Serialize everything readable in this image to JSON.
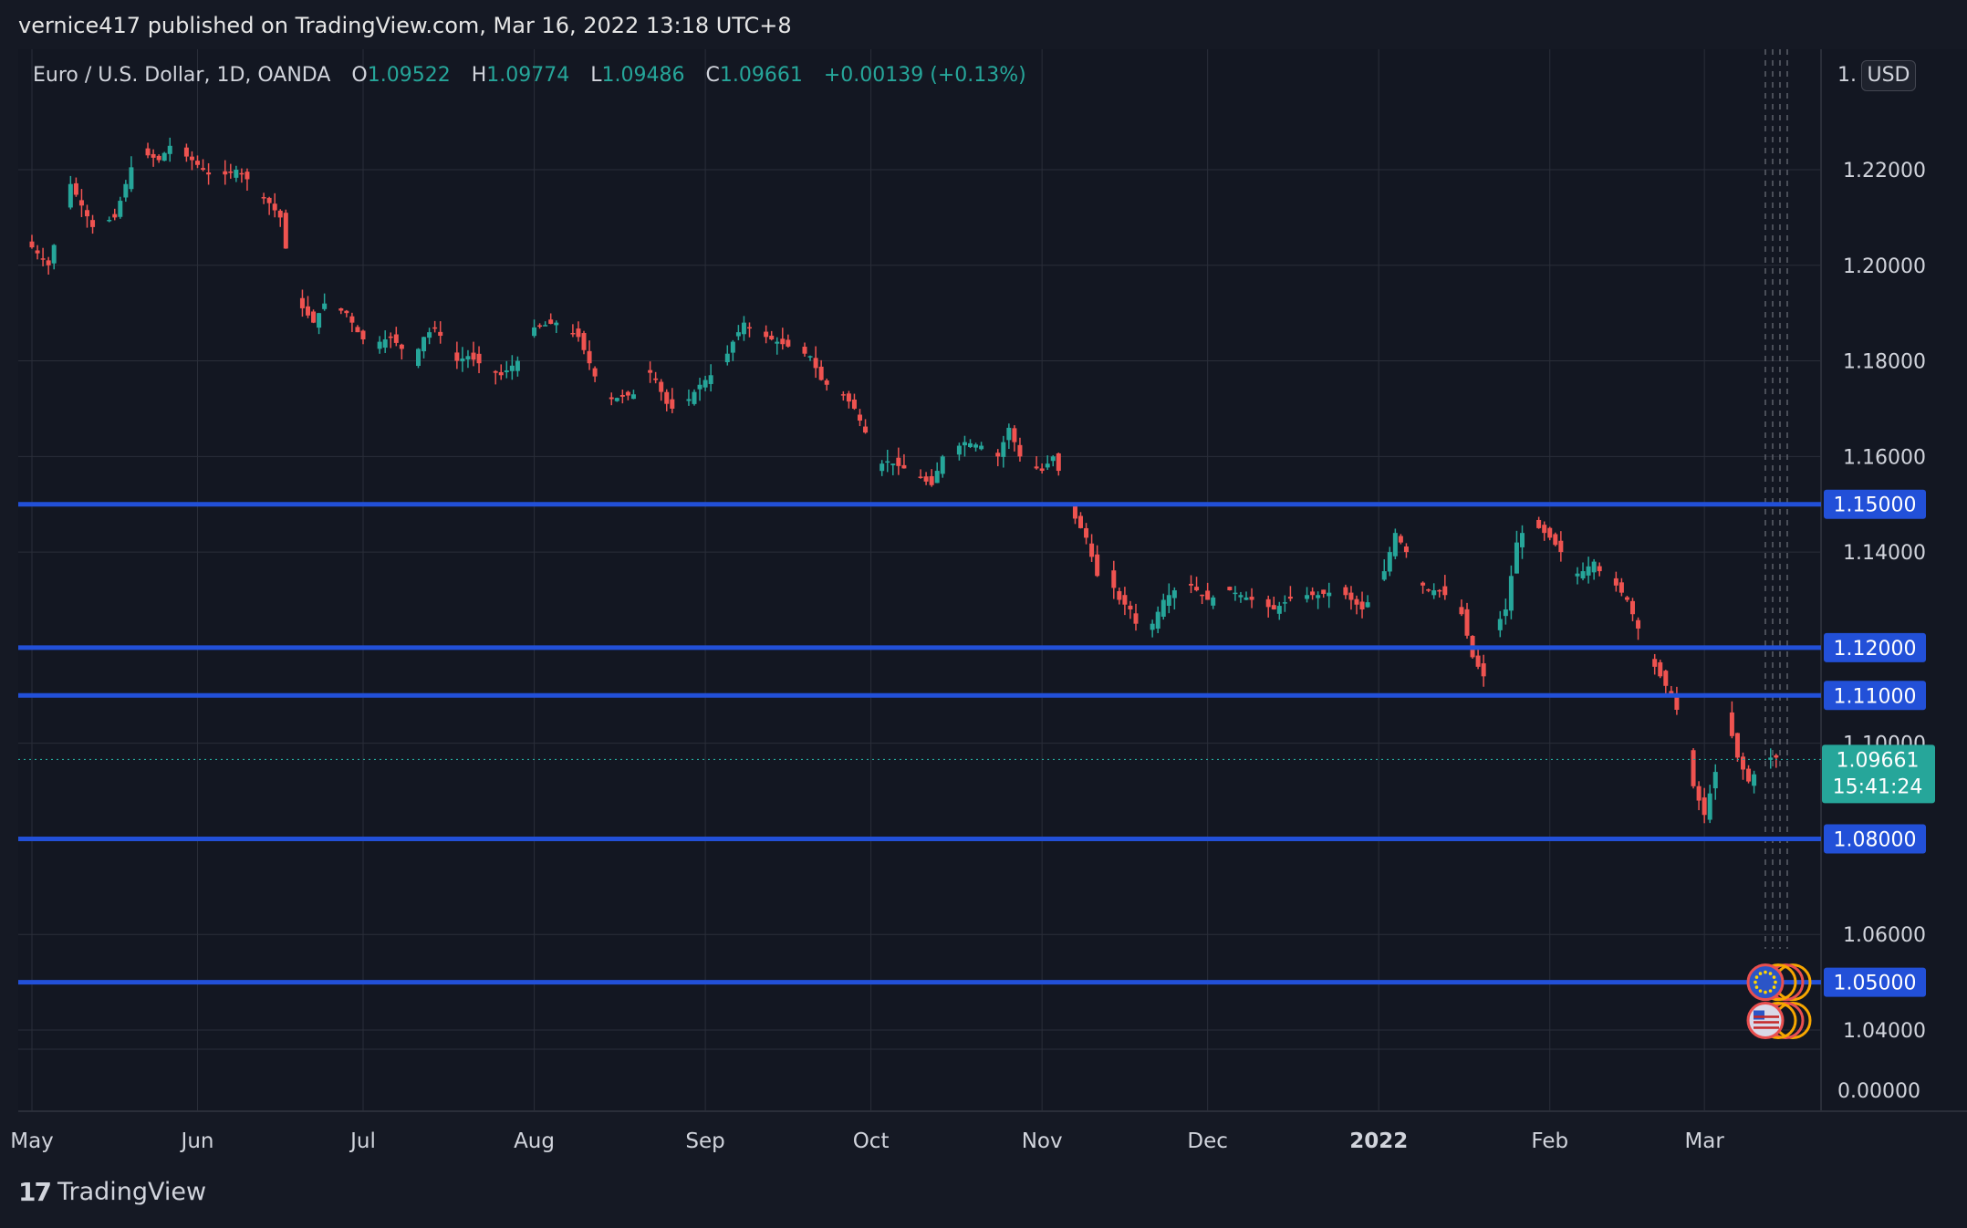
{
  "banner": {
    "text": "vernice417 published on TradingView.com, Mar 16, 2022 13:18 UTC+8"
  },
  "header": {
    "symbol": "Euro / U.S. Dollar, 1D, OANDA",
    "o_label": "O",
    "o_value": "1.09522",
    "h_label": "H",
    "h_value": "1.09774",
    "l_label": "L",
    "l_value": "1.09486",
    "c_label": "C",
    "c_value": "1.09661",
    "change": "+0.00139 (+0.13%)"
  },
  "scale": {
    "currency": "USD"
  },
  "footer": {
    "brand": "TradingView",
    "logo": "17"
  },
  "colors": {
    "up": "#26a69a",
    "down": "#ef5350",
    "level": "#2250d8",
    "grid": "#2a2e39"
  },
  "chart_data": {
    "type": "candlestick",
    "yticks": [
      {
        "value": 1.06,
        "label": "1.06000"
      },
      {
        "value": 1.08,
        "label": "1.08000"
      },
      {
        "value": 1.1,
        "label": "1.10000"
      },
      {
        "value": 1.12,
        "label": "1.12000"
      },
      {
        "value": 1.14,
        "label": "1.14000"
      },
      {
        "value": 1.16,
        "label": "1.16000"
      },
      {
        "value": 1.18,
        "label": "1.18000"
      },
      {
        "value": 1.2,
        "label": "1.20000"
      },
      {
        "value": 1.22,
        "label": "1.22000"
      },
      {
        "value": 1.04,
        "label": "1.04000"
      }
    ],
    "extra_tick": "0.00000",
    "ylim": [
      1.03,
      1.245
    ],
    "xticks": [
      {
        "day": 0,
        "label": "May"
      },
      {
        "day": 30,
        "label": "Jun"
      },
      {
        "day": 60,
        "label": "Jul"
      },
      {
        "day": 91,
        "label": "Aug"
      },
      {
        "day": 122,
        "label": "Sep"
      },
      {
        "day": 152,
        "label": "Oct"
      },
      {
        "day": 183,
        "label": "Nov"
      },
      {
        "day": 213,
        "label": "Dec"
      },
      {
        "day": 244,
        "label": "2022"
      },
      {
        "day": 275,
        "label": "Feb"
      },
      {
        "day": 303,
        "label": "Mar"
      }
    ],
    "levels": [
      {
        "value": 1.15,
        "label": "1.15000"
      },
      {
        "value": 1.12,
        "label": "1.12000"
      },
      {
        "value": 1.11,
        "label": "1.11000"
      },
      {
        "value": 1.08,
        "label": "1.08000"
      },
      {
        "value": 1.05,
        "label": "1.05000"
      }
    ],
    "last_price": {
      "value": 1.09661,
      "label": "1.09661",
      "countdown": "15:41:24"
    },
    "path": [
      [
        0,
        1.205
      ],
      [
        4,
        1.2
      ],
      [
        8,
        1.217
      ],
      [
        12,
        1.208
      ],
      [
        16,
        1.21
      ],
      [
        20,
        1.224
      ],
      [
        24,
        1.222
      ],
      [
        26,
        1.225
      ],
      [
        30,
        1.222
      ],
      [
        34,
        1.218
      ],
      [
        38,
        1.22
      ],
      [
        40,
        1.218
      ],
      [
        44,
        1.213
      ],
      [
        46,
        1.21
      ],
      [
        48,
        1.197
      ],
      [
        50,
        1.191
      ],
      [
        52,
        1.188
      ],
      [
        54,
        1.192
      ],
      [
        56,
        1.191
      ],
      [
        58,
        1.19
      ],
      [
        60,
        1.186
      ],
      [
        62,
        1.183
      ],
      [
        66,
        1.185
      ],
      [
        70,
        1.18
      ],
      [
        72,
        1.185
      ],
      [
        74,
        1.187
      ],
      [
        78,
        1.18
      ],
      [
        80,
        1.181
      ],
      [
        84,
        1.178
      ],
      [
        86,
        1.177
      ],
      [
        90,
        1.181
      ],
      [
        92,
        1.187
      ],
      [
        96,
        1.188
      ],
      [
        100,
        1.185
      ],
      [
        104,
        1.174
      ],
      [
        106,
        1.172
      ],
      [
        110,
        1.173
      ],
      [
        112,
        1.179
      ],
      [
        114,
        1.176
      ],
      [
        116,
        1.171
      ],
      [
        118,
        1.169
      ],
      [
        122,
        1.175
      ],
      [
        126,
        1.179
      ],
      [
        128,
        1.184
      ],
      [
        130,
        1.188
      ],
      [
        132,
        1.186
      ],
      [
        136,
        1.184
      ],
      [
        140,
        1.182
      ],
      [
        142,
        1.181
      ],
      [
        144,
        1.176
      ],
      [
        146,
        1.174
      ],
      [
        148,
        1.173
      ],
      [
        150,
        1.17
      ],
      [
        152,
        1.165
      ],
      [
        154,
        1.158
      ],
      [
        156,
        1.159
      ],
      [
        160,
        1.157
      ],
      [
        164,
        1.154
      ],
      [
        166,
        1.16
      ],
      [
        170,
        1.163
      ],
      [
        174,
        1.162
      ],
      [
        176,
        1.16
      ],
      [
        178,
        1.166
      ],
      [
        180,
        1.16
      ],
      [
        182,
        1.158
      ],
      [
        184,
        1.157
      ],
      [
        186,
        1.16
      ],
      [
        188,
        1.154
      ],
      [
        190,
        1.147
      ],
      [
        192,
        1.143
      ],
      [
        194,
        1.135
      ],
      [
        196,
        1.135
      ],
      [
        198,
        1.13
      ],
      [
        200,
        1.128
      ],
      [
        202,
        1.122
      ],
      [
        204,
        1.125
      ],
      [
        206,
        1.13
      ],
      [
        208,
        1.132
      ],
      [
        210,
        1.134
      ],
      [
        214,
        1.13
      ],
      [
        218,
        1.132
      ],
      [
        222,
        1.13
      ],
      [
        226,
        1.128
      ],
      [
        230,
        1.131
      ],
      [
        234,
        1.131
      ],
      [
        238,
        1.132
      ],
      [
        240,
        1.13
      ],
      [
        242,
        1.128
      ],
      [
        244,
        1.131
      ],
      [
        246,
        1.136
      ],
      [
        248,
        1.144
      ],
      [
        250,
        1.14
      ],
      [
        252,
        1.134
      ],
      [
        254,
        1.132
      ],
      [
        256,
        1.132
      ],
      [
        258,
        1.13
      ],
      [
        260,
        1.127
      ],
      [
        262,
        1.118
      ],
      [
        264,
        1.114
      ],
      [
        266,
        1.124
      ],
      [
        268,
        1.128
      ],
      [
        270,
        1.142
      ],
      [
        272,
        1.146
      ],
      [
        274,
        1.145
      ],
      [
        276,
        1.143
      ],
      [
        278,
        1.14
      ],
      [
        280,
        1.135
      ],
      [
        282,
        1.136
      ],
      [
        284,
        1.138
      ],
      [
        286,
        1.134
      ],
      [
        288,
        1.133
      ],
      [
        290,
        1.13
      ],
      [
        292,
        1.124
      ],
      [
        294,
        1.118
      ],
      [
        296,
        1.114
      ],
      [
        298,
        1.11
      ],
      [
        300,
        1.104
      ],
      [
        302,
        1.091
      ],
      [
        304,
        1.085
      ],
      [
        306,
        1.094
      ],
      [
        308,
        1.106
      ],
      [
        310,
        1.097
      ],
      [
        312,
        1.092
      ],
      [
        314,
        1.095
      ],
      [
        316,
        1.097
      ]
    ]
  }
}
